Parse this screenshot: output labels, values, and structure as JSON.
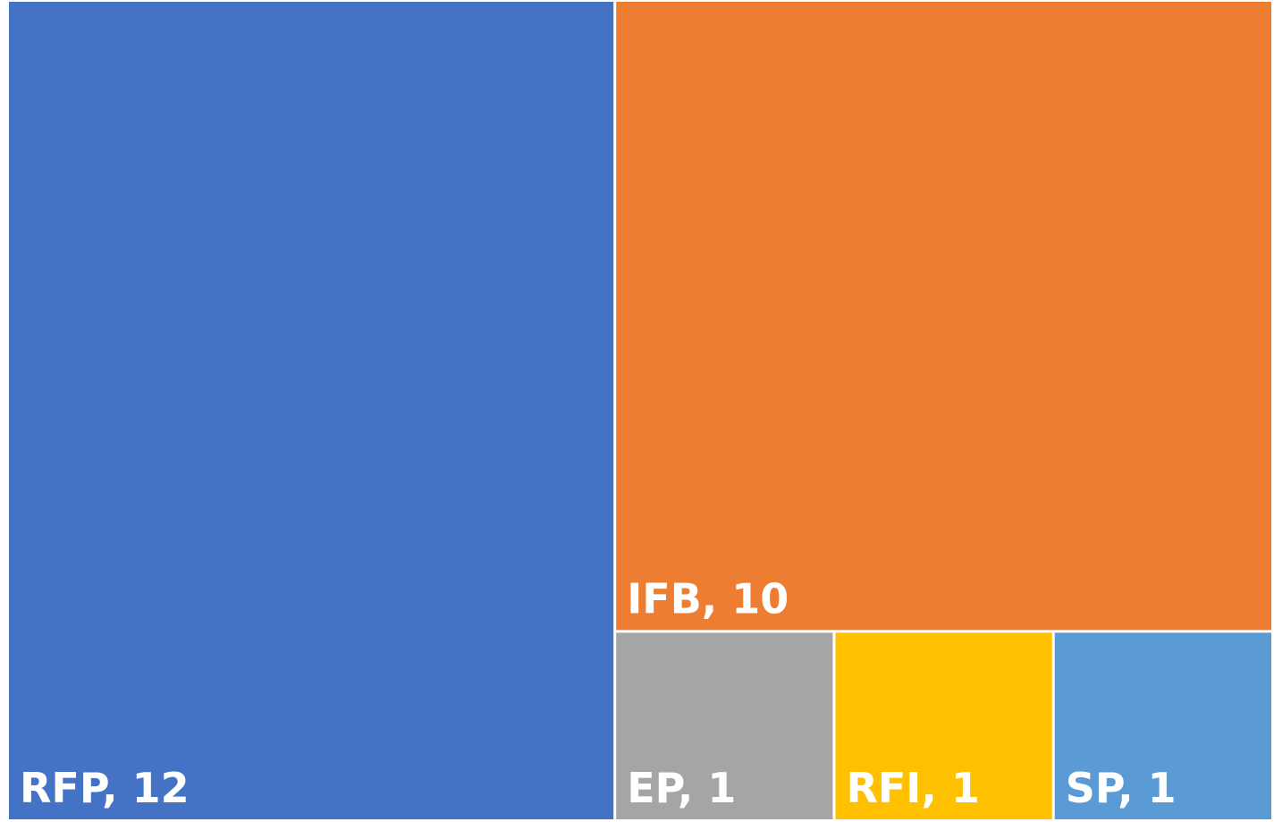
{
  "chart_data": {
    "type": "treemap",
    "categories": [
      "RFP",
      "IFB",
      "EP",
      "RFI",
      "SP"
    ],
    "values": [
      12,
      10,
      1,
      1,
      1
    ],
    "value_labels": [
      "RFP, 12",
      "IFB, 10",
      "EP, 1",
      "RFI, 1",
      "SP, 1"
    ],
    "colors": [
      "#4472c4",
      "#ed7d31",
      "#a5a5a5",
      "#ffc000",
      "#5b9bd5"
    ]
  }
}
